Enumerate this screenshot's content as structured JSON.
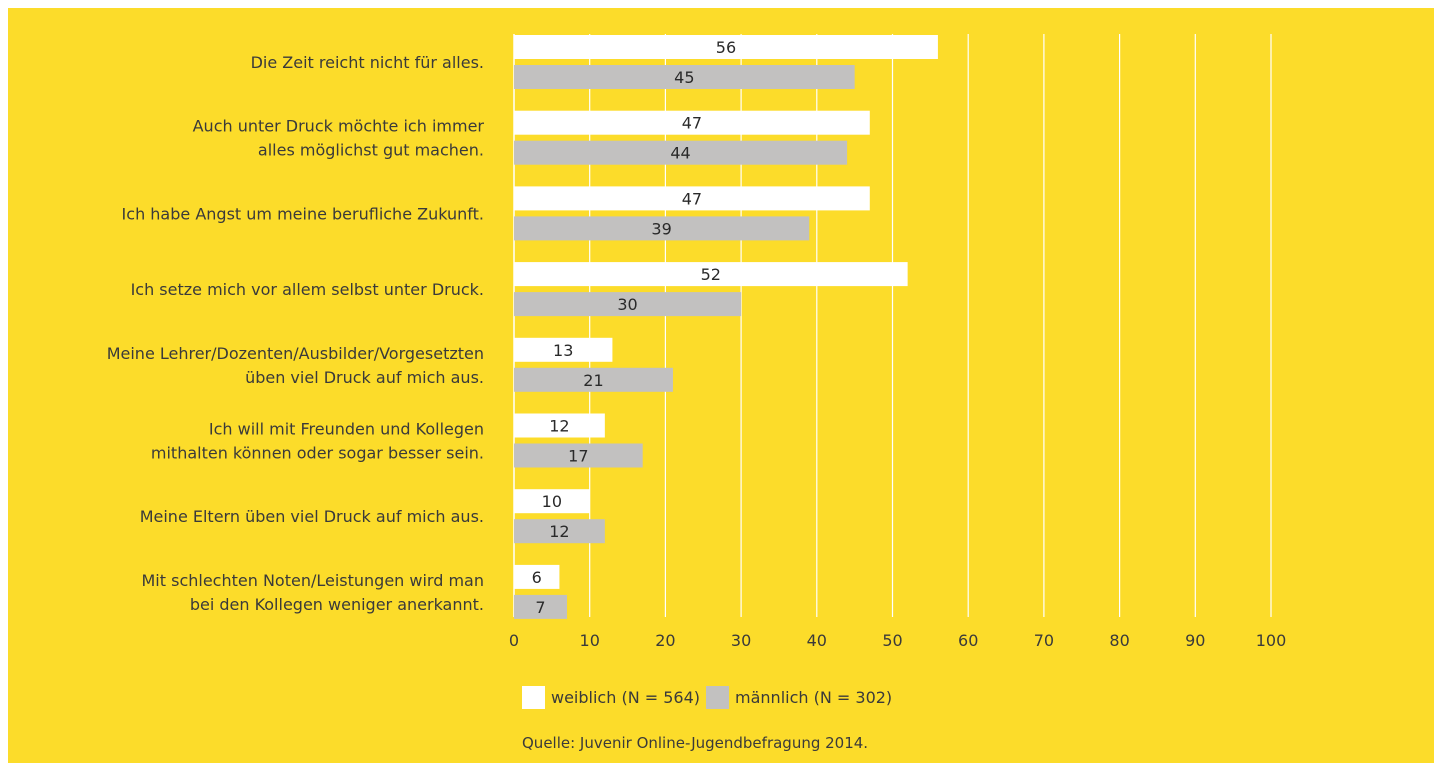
{
  "chart_data": {
    "type": "bar",
    "orientation": "horizontal",
    "categories": [
      [
        "Die Zeit reicht nicht für alles."
      ],
      [
        "Auch unter Druck möchte ich immer",
        "alles möglichst gut machen."
      ],
      [
        "Ich habe Angst um meine berufliche Zukunft."
      ],
      [
        "Ich setze mich vor allem selbst unter Druck."
      ],
      [
        "Meine Lehrer/Dozenten/Ausbilder/Vorgesetzten",
        "üben viel Druck auf mich aus."
      ],
      [
        "Ich will mit Freunden und Kollegen",
        "mithalten können oder sogar besser sein."
      ],
      [
        "Meine Eltern üben viel Druck auf mich aus."
      ],
      [
        "Mit schlechten Noten/Leistungen wird man",
        "bei den Kollegen weniger anerkannt."
      ]
    ],
    "series": [
      {
        "name": "weiblich (N = 564)",
        "color": "#ffffff",
        "values": [
          56,
          47,
          47,
          52,
          13,
          12,
          10,
          6
        ]
      },
      {
        "name": "männlich (N = 302)",
        "color": "#c2c1c0",
        "values": [
          45,
          44,
          39,
          30,
          21,
          17,
          12,
          7
        ]
      }
    ],
    "xlim": [
      0,
      100
    ],
    "xticks": [
      0,
      10,
      20,
      30,
      40,
      50,
      60,
      70,
      80,
      90,
      100
    ],
    "grid": true,
    "legend": "bottom",
    "source": "Quelle: Juvenir Online-Jugendbefragung 2014.",
    "background": "#fcdc2a"
  }
}
